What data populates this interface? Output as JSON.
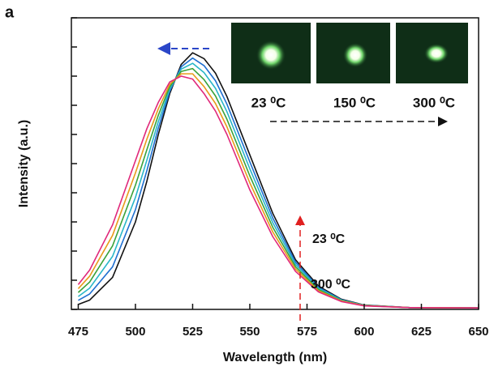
{
  "chart_data": {
    "type": "line",
    "panel_label": "a",
    "xlabel": "Wavelength (nm)",
    "ylabel": "Intensity (a.u.)",
    "x": [
      475,
      480,
      490,
      500,
      505,
      510,
      515,
      520,
      525,
      530,
      535,
      540,
      550,
      560,
      570,
      580,
      590,
      600,
      620,
      650
    ],
    "series": [
      {
        "color": "#111111",
        "values": [
          0.017,
          0.032,
          0.11,
          0.3,
          0.44,
          0.6,
          0.74,
          0.84,
          0.88,
          0.86,
          0.81,
          0.73,
          0.53,
          0.33,
          0.17,
          0.08,
          0.035,
          0.015,
          0.006,
          0.005
        ]
      },
      {
        "color": "#1f6fd0",
        "values": [
          0.031,
          0.053,
          0.146,
          0.342,
          0.476,
          0.622,
          0.748,
          0.832,
          0.862,
          0.836,
          0.784,
          0.704,
          0.506,
          0.314,
          0.162,
          0.076,
          0.033,
          0.014,
          0.006,
          0.005
        ]
      },
      {
        "color": "#29b6c8",
        "values": [
          0.044,
          0.073,
          0.182,
          0.384,
          0.512,
          0.644,
          0.756,
          0.824,
          0.844,
          0.812,
          0.758,
          0.678,
          0.482,
          0.298,
          0.154,
          0.072,
          0.032,
          0.014,
          0.006,
          0.005
        ]
      },
      {
        "color": "#3aa23a",
        "values": [
          0.058,
          0.094,
          0.218,
          0.426,
          0.548,
          0.666,
          0.764,
          0.816,
          0.826,
          0.788,
          0.732,
          0.652,
          0.458,
          0.282,
          0.146,
          0.068,
          0.03,
          0.013,
          0.006,
          0.005
        ]
      },
      {
        "color": "#e89a1a",
        "values": [
          0.071,
          0.114,
          0.254,
          0.468,
          0.584,
          0.688,
          0.772,
          0.808,
          0.808,
          0.764,
          0.706,
          0.626,
          0.434,
          0.266,
          0.138,
          0.064,
          0.029,
          0.013,
          0.006,
          0.005
        ]
      },
      {
        "color": "#e0287a",
        "values": [
          0.085,
          0.135,
          0.29,
          0.51,
          0.62,
          0.71,
          0.78,
          0.8,
          0.79,
          0.74,
          0.68,
          0.6,
          0.41,
          0.25,
          0.13,
          0.06,
          0.027,
          0.012,
          0.006,
          0.005
        ]
      }
    ],
    "xlim": [
      472,
      650
    ],
    "ylim": [
      0,
      1
    ],
    "xticks": [
      475,
      500,
      525,
      550,
      575,
      600,
      625,
      650
    ],
    "yticks": [
      0,
      0.1,
      0.2,
      0.3,
      0.4,
      0.5,
      0.6,
      0.7,
      0.8,
      0.9,
      1
    ],
    "grid": false,
    "inset_labels": [
      "23 ⁰C",
      "150 ⁰C",
      "300 ⁰C"
    ],
    "annotations": [
      "23 ⁰C",
      "300 ⁰C"
    ]
  }
}
